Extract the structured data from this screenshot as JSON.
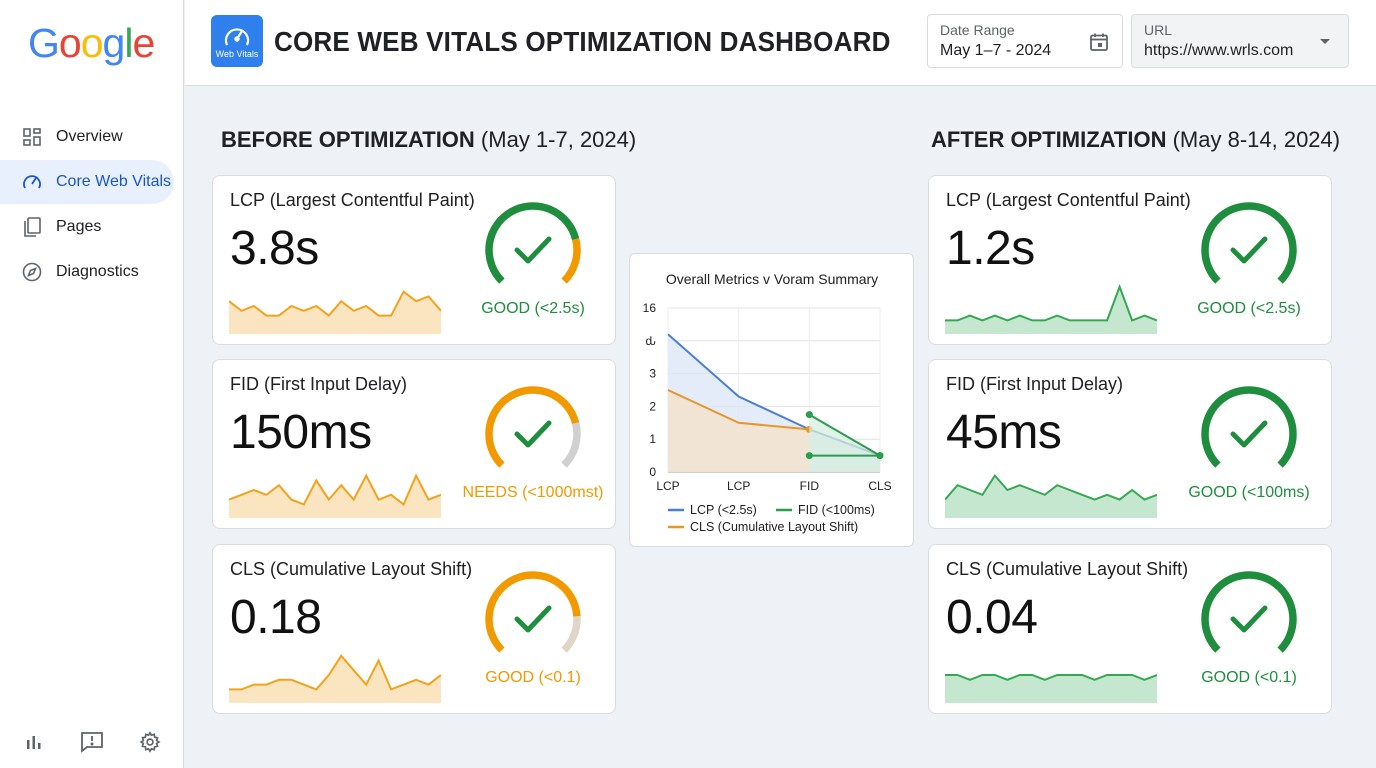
{
  "logo": {
    "text": "Google"
  },
  "sidebar": {
    "items": [
      {
        "label": "Overview",
        "icon": "grid-icon",
        "active": false
      },
      {
        "label": "Core Web Vitals",
        "icon": "speedometer-icon",
        "active": true
      },
      {
        "label": "Pages",
        "icon": "pages-icon",
        "active": false
      },
      {
        "label": "Diagnostics",
        "icon": "compass-icon",
        "active": false
      }
    ],
    "bottom_icons": [
      "bar-chart-icon",
      "feedback-icon",
      "gear-icon"
    ]
  },
  "header": {
    "badge_label": "Web Vitals",
    "title": "CORE WEB VITALS OPTIMIZATION DASHBOARD",
    "date_range": {
      "label": "Date Range",
      "value": "May 1–7 - 2024"
    },
    "url": {
      "label": "URL",
      "value": "https://www.wrls.com"
    }
  },
  "before": {
    "title_bold": "BEFORE OPTIMIZATION",
    "title_rest": " (May 1-7, 2024)",
    "cards": [
      {
        "name": "LCP (Largest Contentful Paint)",
        "value": "3.8s",
        "status": "GOOD (<2.5s)",
        "status_color": "#1e8e3e",
        "gauge_fraction": 0.78,
        "gauge_color": "#1e8e3e",
        "gauge_tail": "#f29900",
        "spark_color": "#f2a31b",
        "spark": [
          6,
          4,
          5,
          3,
          3,
          5,
          4,
          5,
          3,
          6,
          4,
          5,
          3,
          3,
          8,
          6,
          7,
          4
        ]
      },
      {
        "name": "FID (First Input Delay)",
        "value": "150ms",
        "status": "NEEDS (<1000mst)",
        "status_color": "#f29900",
        "gauge_fraction": 0.78,
        "gauge_color": "#f29900",
        "gauge_tail": "#d0d0d0",
        "spark_color": "#f2a31b",
        "spark": [
          3,
          4,
          5,
          4,
          6,
          3,
          2,
          7,
          3,
          6,
          3,
          8,
          3,
          4,
          2,
          8,
          3,
          4
        ]
      },
      {
        "name": "CLS (Cumulative Layout Shift)",
        "value": "0.18",
        "status": "GOOD (<0.1)",
        "status_color": "#f29900",
        "gauge_fraction": 0.82,
        "gauge_color": "#f29900",
        "gauge_tail": "#e0d6c8",
        "spark_color": "#f2a31b",
        "spark": [
          2,
          2,
          3,
          3,
          4,
          4,
          3,
          2,
          5,
          9,
          6,
          3,
          8,
          2,
          3,
          4,
          3,
          5
        ]
      }
    ]
  },
  "after": {
    "title_bold": "AFTER OPTIMIZATION",
    "title_rest": " (May 8-14, 2024)",
    "cards": [
      {
        "name": "LCP (Largest Contentful Paint)",
        "value": "1.2s",
        "status": "GOOD (<2.5s)",
        "status_color": "#1e8e3e",
        "gauge_fraction": 1,
        "gauge_color": "#1e8e3e",
        "gauge_tail": "#1e8e3e",
        "spark_color": "#34a853",
        "spark": [
          2,
          2,
          3,
          2,
          3,
          2,
          3,
          2,
          2,
          3,
          2,
          2,
          2,
          2,
          9,
          2,
          3,
          2
        ]
      },
      {
        "name": "FID (First Input Delay)",
        "value": "45ms",
        "status": "GOOD (<100ms)",
        "status_color": "#1e8e3e",
        "gauge_fraction": 1,
        "gauge_color": "#1e8e3e",
        "gauge_tail": "#1e8e3e",
        "spark_color": "#34a853",
        "spark": [
          3,
          6,
          5,
          4,
          8,
          5,
          6,
          5,
          4,
          6,
          5,
          4,
          3,
          4,
          3,
          5,
          3,
          4
        ]
      },
      {
        "name": "CLS (Cumulative Layout Shift)",
        "value": "0.04",
        "status": "GOOD (<0.1)",
        "status_color": "#1e8e3e",
        "gauge_fraction": 1,
        "gauge_color": "#1e8e3e",
        "gauge_tail": "#1e8e3e",
        "spark_color": "#34a853",
        "spark": [
          5,
          5,
          4,
          5,
          5,
          4,
          5,
          5,
          4,
          5,
          5,
          5,
          4,
          5,
          5,
          5,
          4,
          5
        ]
      }
    ]
  },
  "chart_data": {
    "type": "line",
    "title": "Overall Metrics v Voram Summary",
    "categories": [
      "LCP",
      "LCP",
      "FID",
      "CLS"
    ],
    "ytick_labels": [
      "0",
      "1",
      "2",
      "3",
      "ԃ",
      "16"
    ],
    "ylim": [
      0,
      5
    ],
    "grid": true,
    "series": [
      {
        "name": "LCP (<2.5s)",
        "color": "#4a7fd4",
        "values": [
          4.2,
          2.3,
          1.3,
          0.5
        ],
        "fill": "#dbe6f8"
      },
      {
        "name": "CLS (Cumulative Layout Shift)",
        "color": "#e8952a",
        "values": [
          2.5,
          1.5,
          1.3,
          null
        ],
        "fill": "#f6e2c8"
      },
      {
        "name": "FID (<100ms)",
        "color": "#2a9d4e",
        "values": [
          null,
          null,
          1.75,
          0.5
        ],
        "fill": "#d7eede"
      },
      {
        "name": "",
        "color": "#2a9d4e",
        "values": [
          null,
          null,
          0.5,
          0.5
        ],
        "fill": null
      }
    ],
    "legend": [
      "LCP (<2.5s)",
      "FID (<100ms)",
      "CLS (Cumulative Layout Shift)"
    ],
    "legend_colors": [
      "#4a7fd4",
      "#2a9d4e",
      "#e8952a"
    ],
    "legend_position": "bottom"
  }
}
